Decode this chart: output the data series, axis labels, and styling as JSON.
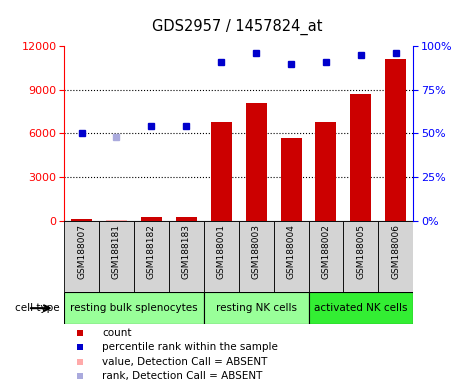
{
  "title": "GDS2957 / 1457824_at",
  "samples": [
    "GSM188007",
    "GSM188181",
    "GSM188182",
    "GSM188183",
    "GSM188001",
    "GSM188003",
    "GSM188004",
    "GSM188002",
    "GSM188005",
    "GSM188006"
  ],
  "bar_values": [
    130,
    50,
    270,
    270,
    6800,
    8100,
    5700,
    6800,
    8700,
    11100
  ],
  "bar_absent": [
    false,
    true,
    false,
    false,
    false,
    false,
    false,
    false,
    false,
    false
  ],
  "percentile_values": [
    50,
    48,
    54,
    54,
    91,
    96,
    90,
    91,
    95,
    96
  ],
  "percentile_absent": [
    false,
    true,
    false,
    false,
    false,
    false,
    false,
    false,
    false,
    false
  ],
  "cell_groups": [
    {
      "label": "resting bulk splenocytes",
      "start": 0,
      "end": 4,
      "color": "#99ff99"
    },
    {
      "label": "resting NK cells",
      "start": 4,
      "end": 7,
      "color": "#99ff99"
    },
    {
      "label": "activated NK cells",
      "start": 7,
      "end": 10,
      "color": "#33ee33"
    }
  ],
  "bar_color_present": "#cc0000",
  "bar_color_absent": "#ffaaaa",
  "dot_color_present": "#0000cc",
  "dot_color_absent": "#aaaadd",
  "ylim_left": [
    0,
    12000
  ],
  "ylim_right": [
    0,
    100
  ],
  "yticks_left": [
    0,
    3000,
    6000,
    9000,
    12000
  ],
  "yticks_right": [
    0,
    25,
    50,
    75,
    100
  ],
  "ytick_labels_right": [
    "0%",
    "25%",
    "50%",
    "75%",
    "100%"
  ],
  "grid_values": [
    3000,
    6000,
    9000
  ],
  "plot_bg": "#ffffff",
  "sample_box_bg": "#d4d4d4",
  "background_color": "#ffffff"
}
